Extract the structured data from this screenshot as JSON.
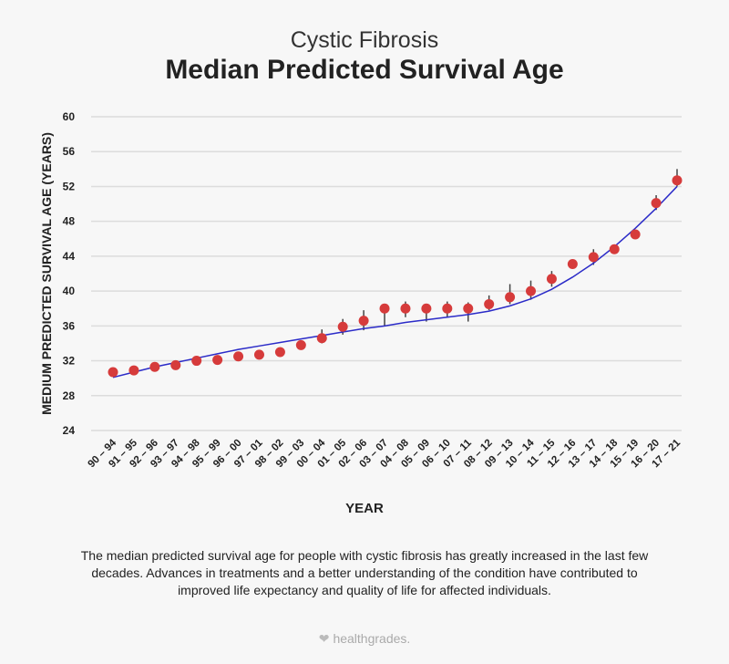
{
  "header": {
    "subtitle": "Cystic Fibrosis",
    "title": "Median Predicted Survival Age"
  },
  "chart_data": {
    "type": "scatter",
    "xlabel": "YEAR",
    "ylabel": "MEDIUM PREDICTED SURVIVAL AGE (YEARS)",
    "ylim": [
      24,
      60
    ],
    "yticks": [
      24,
      28,
      32,
      36,
      40,
      44,
      48,
      52,
      56,
      60
    ],
    "grid": true,
    "categories": [
      "90 – 94",
      "91 – 95",
      "92 – 96",
      "93 – 97",
      "94 – 98",
      "95 – 99",
      "96 – 00",
      "97 – 01",
      "98 – 02",
      "99 – 03",
      "00 – 04",
      "01 – 05",
      "02 – 06",
      "03 – 07",
      "04 – 08",
      "05 – 09",
      "06 – 10",
      "07 – 11",
      "08 – 12",
      "09 – 13",
      "10 – 14",
      "11 – 15",
      "12 – 16",
      "13 – 17",
      "14 – 18",
      "15 – 19",
      "16 – 20",
      "17 – 21"
    ],
    "values": [
      30.7,
      30.9,
      31.3,
      31.5,
      32.0,
      32.1,
      32.5,
      32.7,
      33.0,
      33.8,
      34.6,
      35.9,
      36.6,
      38.0,
      38.0,
      38.0,
      38.0,
      38.0,
      38.5,
      39.3,
      40.0,
      41.4,
      43.1,
      43.9,
      44.8,
      46.5,
      50.1,
      52.7
    ],
    "error_low": [
      null,
      null,
      null,
      null,
      null,
      null,
      null,
      null,
      null,
      null,
      34.0,
      35.0,
      35.5,
      36.0,
      37.0,
      36.5,
      37.0,
      36.5,
      37.8,
      38.5,
      39.0,
      40.5,
      null,
      43.0,
      null,
      null,
      49.3,
      52.0
    ],
    "error_high": [
      null,
      null,
      null,
      null,
      null,
      null,
      null,
      null,
      null,
      null,
      35.6,
      36.8,
      37.8,
      38.0,
      38.8,
      38.2,
      38.8,
      38.7,
      39.5,
      40.8,
      41.2,
      42.3,
      null,
      44.8,
      null,
      null,
      51.0,
      54.0
    ],
    "trend": [
      30.1,
      30.7,
      31.3,
      31.8,
      32.3,
      32.8,
      33.3,
      33.7,
      34.1,
      34.5,
      34.9,
      35.3,
      35.7,
      36.0,
      36.4,
      36.7,
      37.0,
      37.3,
      37.7,
      38.3,
      39.1,
      40.2,
      41.6,
      43.2,
      45.1,
      47.2,
      49.5,
      52.0
    ],
    "colors": {
      "point": "#d63b3b",
      "trend": "#2b2bc8",
      "error": "#444444",
      "grid": "#dcdcdc"
    }
  },
  "caption": "The median predicted survival age for people with cystic fibrosis has greatly increased in the last few decades. Advances in treatments and a better understanding of the condition have contributed to improved life expectancy and quality of life for affected individuals.",
  "logo": {
    "text": "healthgrades."
  }
}
